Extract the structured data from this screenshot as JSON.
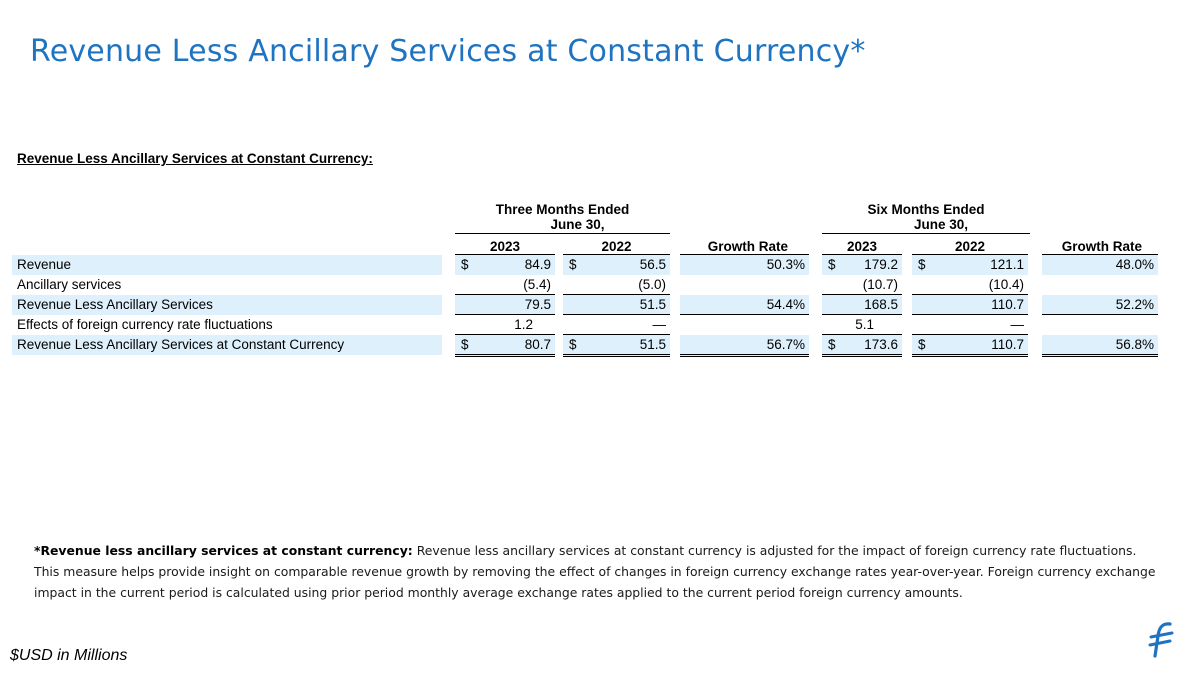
{
  "slide": {
    "title": "Revenue Less Ancillary Services at Constant Currency*",
    "units_note": "$USD in Millions",
    "accent_color": "#1f74c2",
    "row_shade_color": "#ddf0fb",
    "logo_icon": "brand-logo-icon"
  },
  "table": {
    "heading": "Revenue Less Ancillary Services at Constant Currency:",
    "groups": [
      {
        "line1": "Three Months Ended",
        "line2": "June 30,"
      },
      {
        "line1": "Six Months Ended",
        "line2": "June 30,"
      }
    ],
    "columns": [
      "2023",
      "2022",
      "Growth Rate",
      "2023",
      "2022",
      "Growth Rate"
    ],
    "rows": [
      {
        "label": "Revenue",
        "c1": {
          "sym": "$",
          "val": "84.9"
        },
        "c2": {
          "sym": "$",
          "val": "56.5"
        },
        "c3": {
          "sym": "",
          "val": "50.3%"
        },
        "c4": {
          "sym": "$",
          "val": "179.2"
        },
        "c5": {
          "sym": "$",
          "val": "121.1"
        },
        "c6": {
          "sym": "",
          "val": "48.0%"
        }
      },
      {
        "label": "Ancillary services",
        "c1": {
          "sym": "",
          "val": "(5.4)"
        },
        "c2": {
          "sym": "",
          "val": "(5.0)"
        },
        "c3": {
          "sym": "",
          "val": ""
        },
        "c4": {
          "sym": "",
          "val": "(10.7)"
        },
        "c5": {
          "sym": "",
          "val": "(10.4)"
        },
        "c6": {
          "sym": "",
          "val": ""
        }
      },
      {
        "label": "Revenue Less Ancillary Services",
        "c1": {
          "sym": "",
          "val": "79.5"
        },
        "c2": {
          "sym": "",
          "val": "51.5"
        },
        "c3": {
          "sym": "",
          "val": "54.4%"
        },
        "c4": {
          "sym": "",
          "val": "168.5"
        },
        "c5": {
          "sym": "",
          "val": "110.7"
        },
        "c6": {
          "sym": "",
          "val": "52.2%"
        }
      },
      {
        "label": "Effects of foreign currency rate fluctuations",
        "c1": {
          "sym": "",
          "val": "1.2"
        },
        "c2": {
          "sym": "",
          "val": "—"
        },
        "c3": {
          "sym": "",
          "val": ""
        },
        "c4": {
          "sym": "",
          "val": "5.1"
        },
        "c5": {
          "sym": "",
          "val": "—"
        },
        "c6": {
          "sym": "",
          "val": ""
        }
      },
      {
        "label": "Revenue Less Ancillary Services at Constant Currency",
        "c1": {
          "sym": "$",
          "val": "80.7"
        },
        "c2": {
          "sym": "$",
          "val": "51.5"
        },
        "c3": {
          "sym": "",
          "val": "56.7%"
        },
        "c4": {
          "sym": "$",
          "val": "173.6"
        },
        "c5": {
          "sym": "$",
          "val": "110.7"
        },
        "c6": {
          "sym": "",
          "val": "56.8%"
        }
      }
    ]
  },
  "footnote": {
    "bold": "*Revenue less ancillary services at constant currency:",
    "text": " Revenue less ancillary services at constant currency is adjusted for the  impact of foreign currency rate fluctuations. This measure helps provide insight on comparable revenue growth by removing the effect of changes in foreign currency exchange rates year-over-year. Foreign currency exchange impact in the current period is calculated using prior period monthly average exchange rates applied to the current period foreign currency amounts."
  }
}
